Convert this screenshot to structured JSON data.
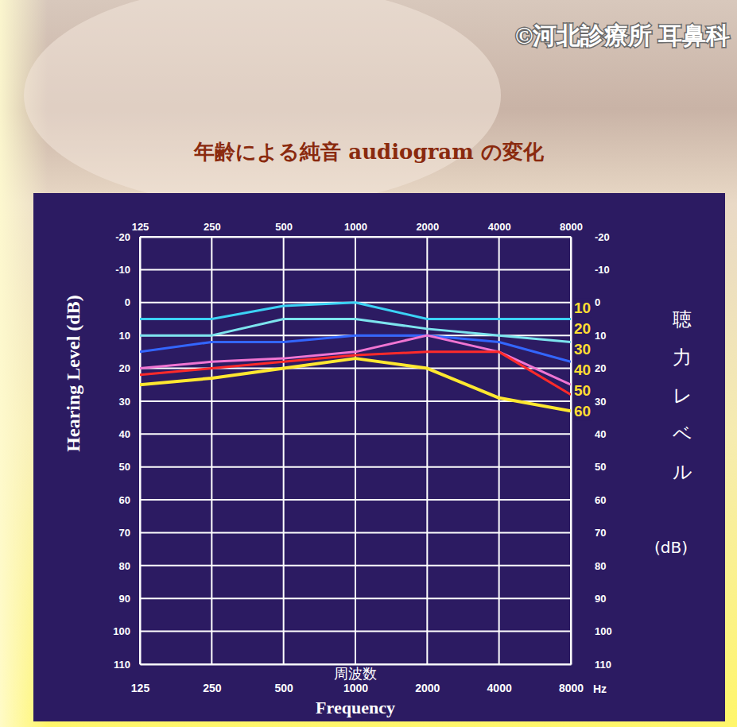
{
  "chart_data": {
    "type": "line",
    "title": "年齢による純音 audiogram の変化",
    "annotations": [
      "©河北診療所 耳鼻科"
    ],
    "xlabel": "周波数",
    "xlabel2": "Frequency",
    "x_unit": "Hz",
    "ylabel": "Hearing Level (dB)",
    "y2label": "聴力レベル (dB)",
    "x": [
      125,
      250,
      500,
      1000,
      2000,
      4000,
      8000
    ],
    "xlim": [
      125,
      8000
    ],
    "xticks": [
      125,
      250,
      500,
      1000,
      2000,
      4000,
      8000
    ],
    "log": "x",
    "ylim": [
      -20,
      110
    ],
    "yticks": [
      -20,
      -10,
      0,
      10,
      20,
      30,
      40,
      50,
      60,
      70,
      80,
      90,
      100,
      110
    ],
    "y2lim": [
      -20,
      110
    ],
    "y2ticks": [
      -20,
      -10,
      0,
      10,
      20,
      30,
      40,
      50,
      60,
      70,
      80,
      90,
      100,
      110
    ],
    "grid": true,
    "legend": "right",
    "series": [
      {
        "name": "10",
        "color": "#3cd2f5",
        "values": [
          5,
          5,
          1,
          0,
          5,
          5,
          5
        ]
      },
      {
        "name": "20",
        "color": "#7de4ee",
        "values": [
          10,
          10,
          5,
          5,
          8,
          10,
          12
        ]
      },
      {
        "name": "30",
        "color": "#3366ff",
        "values": [
          15,
          12,
          12,
          10,
          10,
          12,
          18
        ]
      },
      {
        "name": "40",
        "color": "#f075d2",
        "values": [
          20,
          18,
          17,
          15,
          10,
          15,
          25
        ]
      },
      {
        "name": "50",
        "color": "#ff2a2a",
        "values": [
          22,
          20,
          18,
          16,
          15,
          15,
          28
        ]
      },
      {
        "name": "60",
        "color": "#ffe830",
        "values": [
          25,
          23,
          20,
          17,
          20,
          29,
          33
        ]
      }
    ]
  }
}
